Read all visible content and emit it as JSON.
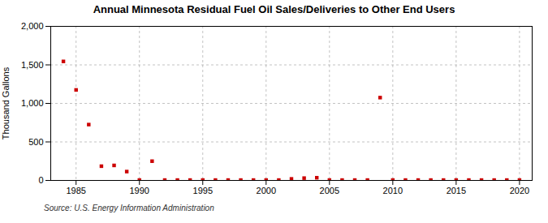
{
  "chart_data": {
    "type": "scatter",
    "title": "Annual Minnesota Residual Fuel Oil Sales/Deliveries to Other End Users",
    "ylabel": "Thousand Gallons",
    "caption": "Source: U.S. Energy Information Administration",
    "color": "#cc0000",
    "marker": "square",
    "grid": true,
    "xlim": [
      1983,
      2021
    ],
    "ylim": [
      0,
      2000
    ],
    "xticks": [
      1985,
      1990,
      1995,
      2000,
      2005,
      2010,
      2015,
      2020
    ],
    "yticks": [
      0,
      500,
      {
        "value": 1000,
        "label": "1,000"
      },
      {
        "value": 1500,
        "label": "1,500"
      },
      {
        "value": 2000,
        "label": "2,000"
      }
    ],
    "x": [
      1984,
      1985,
      1986,
      1987,
      1988,
      1989,
      1990,
      1991,
      1992,
      1993,
      1994,
      1995,
      1996,
      1997,
      1998,
      1999,
      2000,
      2001,
      2002,
      2003,
      2004,
      2005,
      2006,
      2007,
      2008,
      2009,
      2010,
      2011,
      2012,
      2013,
      2014,
      2015,
      2016,
      2017,
      2018,
      2019,
      2020
    ],
    "values": [
      1545,
      1175,
      725,
      185,
      195,
      115,
      5,
      250,
      5,
      5,
      5,
      5,
      5,
      5,
      5,
      5,
      5,
      5,
      20,
      30,
      35,
      5,
      5,
      5,
      5,
      1075,
      5,
      5,
      5,
      5,
      5,
      5,
      5,
      5,
      5,
      5,
      5
    ]
  }
}
